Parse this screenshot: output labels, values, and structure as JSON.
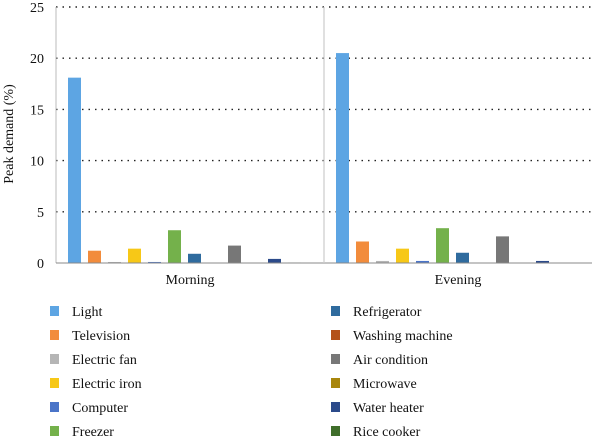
{
  "chart_data": {
    "type": "bar",
    "title": "",
    "xlabel": "",
    "ylabel": "Peak demand (%)",
    "ylim": [
      0,
      25
    ],
    "yticks": [
      0,
      5,
      10,
      15,
      20,
      25
    ],
    "grid": "horizontal dotted",
    "legend_position": "bottom",
    "categories": [
      "Morning",
      "Evening"
    ],
    "series": [
      {
        "name": "Light",
        "color": "#5DA5E3",
        "values": [
          18.1,
          20.5
        ]
      },
      {
        "name": "Television",
        "color": "#F28C3C",
        "values": [
          1.2,
          2.1
        ]
      },
      {
        "name": "Electric fan",
        "color": "#B5B5B5",
        "values": [
          0.1,
          0.2
        ]
      },
      {
        "name": "Electric iron",
        "color": "#F7C817",
        "values": [
          1.4,
          1.4
        ]
      },
      {
        "name": "Computer",
        "color": "#4A74C8",
        "values": [
          0.1,
          0.2
        ]
      },
      {
        "name": "Freezer",
        "color": "#74B14B",
        "values": [
          3.2,
          3.4
        ]
      },
      {
        "name": "Refrigerator",
        "color": "#2F6B9E",
        "values": [
          0.9,
          1.0
        ]
      },
      {
        "name": "Washing machine",
        "color": "#B4521A",
        "values": [
          0.0,
          0.0
        ]
      },
      {
        "name": "Air condition",
        "color": "#777777",
        "values": [
          1.7,
          2.6
        ]
      },
      {
        "name": "Microwave",
        "color": "#A8860C",
        "values": [
          0.0,
          0.0
        ]
      },
      {
        "name": "Water heater",
        "color": "#2B4A8A",
        "values": [
          0.4,
          0.2
        ]
      },
      {
        "name": "Rice cooker",
        "color": "#3F6E2B",
        "values": [
          0.05,
          0.0
        ]
      }
    ]
  }
}
